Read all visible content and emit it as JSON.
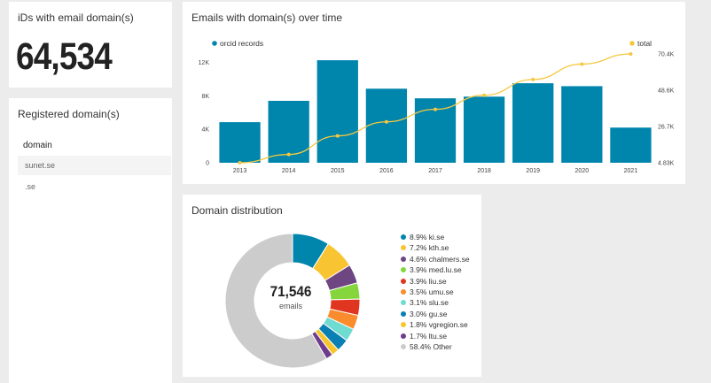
{
  "kpi": {
    "title": "iDs with email domain(s)",
    "value": "64,534"
  },
  "registered": {
    "title": "Registered domain(s)",
    "column_header": "domain",
    "rows": [
      "sunet.se",
      ".se"
    ]
  },
  "chart_data": [
    {
      "type": "bar",
      "title": "Emails with domain(s) over time",
      "categories": [
        "2013",
        "2014",
        "2015",
        "2016",
        "2017",
        "2018",
        "2019",
        "2020",
        "2021"
      ],
      "series": [
        {
          "name": "orcid records",
          "type": "bar",
          "axis": "left",
          "color": "#0085ad",
          "values": [
            4850,
            7400,
            12250,
            8850,
            7700,
            7900,
            9500,
            9150,
            4200
          ]
        },
        {
          "name": "total",
          "type": "line",
          "axis": "right",
          "color": "#f5c842",
          "values": [
            4830,
            9800,
            21000,
            29500,
            37000,
            45500,
            55000,
            64300,
            70400
          ]
        }
      ],
      "y_left": {
        "ticks": [
          "0",
          "4K",
          "8K",
          "12K"
        ],
        "range": [
          0,
          13000
        ]
      },
      "y_right": {
        "ticks": [
          "4.83K",
          "26.7K",
          "48.6K",
          "70.4K"
        ],
        "range": [
          4830,
          70400
        ]
      },
      "legend": "top",
      "grid": false
    },
    {
      "type": "pie",
      "title": "Domain distribution",
      "donut": true,
      "center_value": "71,546",
      "center_label": "emails",
      "slices": [
        {
          "label": "ki.se",
          "percent": 8.9,
          "percent_label": "8.9%",
          "color": "#0085ad"
        },
        {
          "label": "kth.se",
          "percent": 7.2,
          "percent_label": "7.2%",
          "color": "#f9c432"
        },
        {
          "label": "chalmers.se",
          "percent": 4.6,
          "percent_label": "4.6%",
          "color": "#6e4682"
        },
        {
          "label": "med.lu.se",
          "percent": 3.9,
          "percent_label": "3.9%",
          "color": "#85d63d"
        },
        {
          "label": "liu.se",
          "percent": 3.9,
          "percent_label": "3.9%",
          "color": "#e0361f"
        },
        {
          "label": "umu.se",
          "percent": 3.5,
          "percent_label": "3.5%",
          "color": "#fa8c2d"
        },
        {
          "label": "slu.se",
          "percent": 3.1,
          "percent_label": "3.1%",
          "color": "#70dbd0"
        },
        {
          "label": "gu.se",
          "percent": 3.0,
          "percent_label": "3.0%",
          "color": "#0a7fb3"
        },
        {
          "label": "vgregion.se",
          "percent": 1.8,
          "percent_label": "1.8%",
          "color": "#f7c62f"
        },
        {
          "label": "ltu.se",
          "percent": 1.7,
          "percent_label": "1.7%",
          "color": "#6e3c8c"
        },
        {
          "label": "Other",
          "percent": 58.4,
          "percent_label": "58.4%",
          "color": "#cccccc"
        }
      ],
      "legend": "right"
    }
  ]
}
